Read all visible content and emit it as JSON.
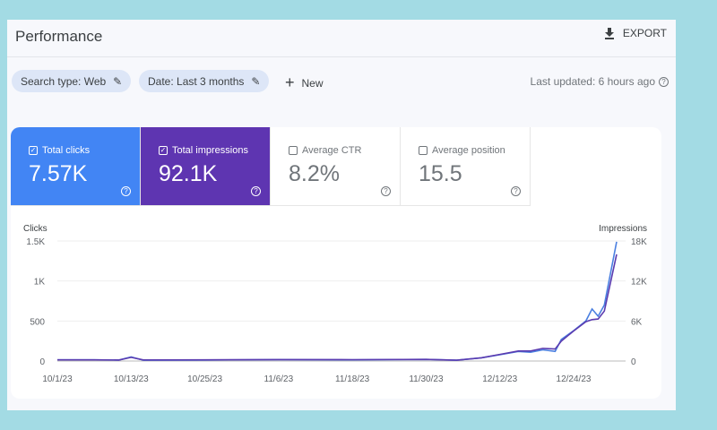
{
  "header": {
    "title": "Performance",
    "export_label": "EXPORT"
  },
  "filters": {
    "search_type": "Search type: Web",
    "date": "Date: Last 3 months",
    "new_label": "New",
    "last_updated": "Last updated: 6 hours ago"
  },
  "metrics": [
    {
      "label": "Total clicks",
      "value": "7.57K",
      "checked": true,
      "color": "#4285f4"
    },
    {
      "label": "Total impressions",
      "value": "92.1K",
      "checked": true,
      "color": "#5e35b1"
    },
    {
      "label": "Average CTR",
      "value": "8.2%",
      "checked": false
    },
    {
      "label": "Average position",
      "value": "15.5",
      "checked": false
    }
  ],
  "chart_data": {
    "type": "line",
    "left_axis_label": "Clicks",
    "right_axis_label": "Impressions",
    "left_ticks": [
      "0",
      "500",
      "1K",
      "1.5K"
    ],
    "right_ticks": [
      "0",
      "6K",
      "12K",
      "18K"
    ],
    "ylim_left": [
      0,
      1500
    ],
    "ylim_right": [
      0,
      18000
    ],
    "x_ticks": [
      "10/1/23",
      "10/13/23",
      "10/25/23",
      "11/6/23",
      "11/18/23",
      "11/30/23",
      "12/12/23",
      "12/24/23"
    ],
    "x": [
      "2023-10-01",
      "2023-10-07",
      "2023-10-11",
      "2023-10-13",
      "2023-10-15",
      "2023-10-25",
      "2023-11-06",
      "2023-11-18",
      "2023-11-30",
      "2023-12-05",
      "2023-12-09",
      "2023-12-12",
      "2023-12-15",
      "2023-12-17",
      "2023-12-19",
      "2023-12-21",
      "2023-12-22",
      "2023-12-24",
      "2023-12-26",
      "2023-12-27",
      "2023-12-28",
      "2023-12-29",
      "2023-12-31"
    ],
    "series": [
      {
        "key": "clicks",
        "color": "#4a7fe0",
        "axis": "left",
        "values": [
          15,
          15,
          12,
          50,
          10,
          12,
          18,
          15,
          20,
          10,
          40,
          80,
          120,
          110,
          140,
          120,
          270,
          380,
          500,
          650,
          560,
          700,
          1490
        ]
      },
      {
        "key": "impressions",
        "color": "#5a3bb0",
        "axis": "right",
        "values": [
          180,
          170,
          150,
          550,
          160,
          170,
          220,
          200,
          240,
          120,
          480,
          1000,
          1500,
          1500,
          1900,
          1800,
          3000,
          4500,
          5900,
          6200,
          6300,
          7500,
          16000
        ]
      }
    ],
    "grid": true
  }
}
